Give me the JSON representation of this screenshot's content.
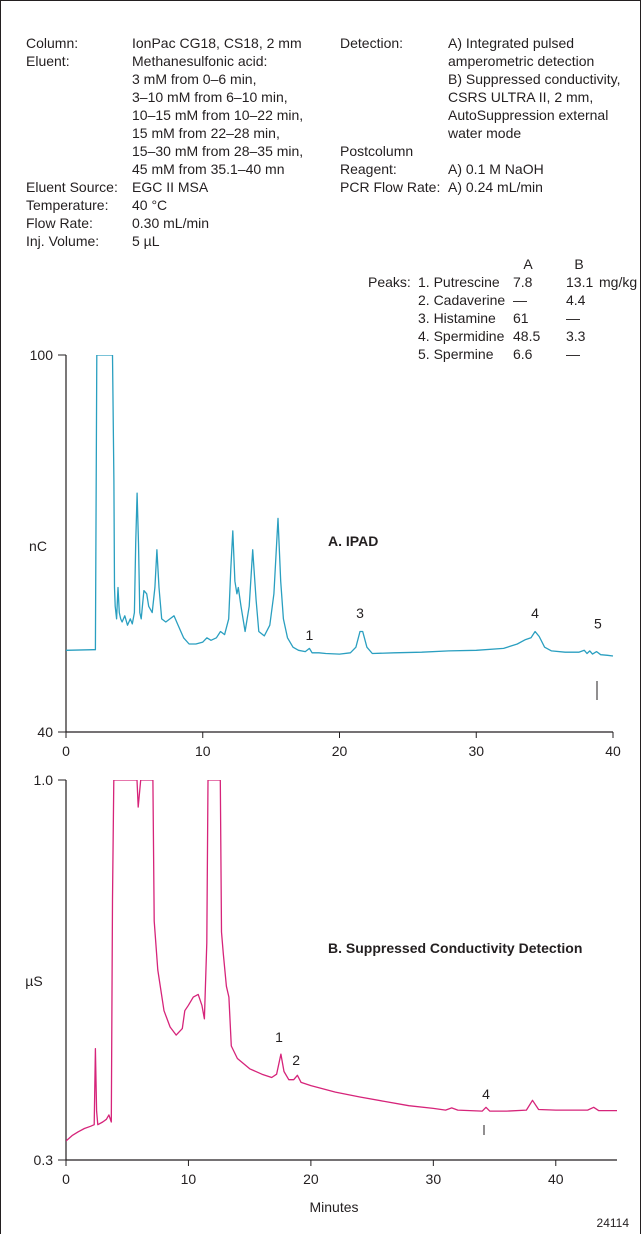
{
  "conditions": {
    "left": [
      {
        "label": "Column:",
        "lines": [
          "IonPac CG18, CS18, 2 mm"
        ]
      },
      {
        "label": "Eluent:",
        "lines": [
          "Methanesulfonic acid:",
          "3 mM from 0–6 min,",
          "3–10 mM from 6–10 min,",
          "10–15 mM from 10–22 min,",
          "15 mM from 22–28 min,",
          "15–30 mM from 28–35 min,",
          "45 mM from 35.1–40 mn"
        ]
      },
      {
        "label": "Eluent Source:",
        "lines": [
          "EGC II MSA"
        ]
      },
      {
        "label": "Temperature:",
        "lines": [
          "40 °C"
        ]
      },
      {
        "label": "Flow Rate:",
        "lines": [
          "0.30 mL/min"
        ]
      },
      {
        "label": "Inj. Volume:",
        "lines": [
          "5 µL"
        ]
      }
    ],
    "right": [
      {
        "label": "Detection:",
        "lines": [
          "A) Integrated pulsed",
          "    amperometric detection",
          "B) Suppressed conductivity,",
          "    CSRS ULTRA II, 2 mm,",
          "    AutoSuppression external",
          "    water mode"
        ]
      },
      {
        "label": "Postcolumn",
        "lines": []
      },
      {
        "label": "Reagent:",
        "lines": [
          "A) 0.1 M NaOH"
        ]
      },
      {
        "label": "PCR Flow Rate:",
        "lines": [
          "A) 0.24 mL/min"
        ]
      }
    ]
  },
  "peaks_table": {
    "label": "Peaks:",
    "col_a": "A",
    "col_b": "B",
    "unit": "mg/kg",
    "rows": [
      {
        "name": "1. Putrescine",
        "a": "7.8",
        "b": "13.1"
      },
      {
        "name": "2. Cadaverine",
        "a": "—",
        "b": "4.4"
      },
      {
        "name": "3. Histamine",
        "a": "61",
        "b": "—"
      },
      {
        "name": "4. Spermidine",
        "a": "48.5",
        "b": "3.3"
      },
      {
        "name": "5. Spermine",
        "a": "6.6",
        "b": "—"
      }
    ]
  },
  "x_label": "Minutes",
  "figure_number": "24114",
  "colors": {
    "ipad": "#2a9fc0",
    "conductivity": "#d6247a",
    "ink": "#231f20"
  },
  "chart_data": [
    {
      "type": "line",
      "title": "A. IPAD",
      "ylabel": "nC",
      "xlim": [
        0,
        40
      ],
      "ylim": [
        40,
        100
      ],
      "xticks": [
        0,
        10,
        20,
        30,
        40
      ],
      "yticks": [
        40,
        100
      ],
      "series": [
        {
          "color": "#2a9fc0",
          "points": [
            [
              0,
              53.0
            ],
            [
              2.0,
              53.1
            ],
            [
              2.15,
              53.1
            ],
            [
              2.25,
              100
            ],
            [
              2.6,
              100
            ],
            [
              2.75,
              100
            ],
            [
              2.85,
              100
            ],
            [
              3.0,
              100
            ],
            [
              3.15,
              100
            ],
            [
              3.3,
              100
            ],
            [
              3.4,
              100
            ],
            [
              3.5,
              80
            ],
            [
              3.55,
              63
            ],
            [
              3.6,
              60
            ],
            [
              3.7,
              58
            ],
            [
              3.8,
              63
            ],
            [
              3.9,
              59
            ],
            [
              4.0,
              58
            ],
            [
              4.1,
              57.5
            ],
            [
              4.3,
              58.5
            ],
            [
              4.5,
              57
            ],
            [
              4.7,
              58
            ],
            [
              4.85,
              57.2
            ],
            [
              5.0,
              59
            ],
            [
              5.1,
              70
            ],
            [
              5.2,
              78
            ],
            [
              5.3,
              70
            ],
            [
              5.4,
              59
            ],
            [
              5.5,
              58
            ],
            [
              5.7,
              62.5
            ],
            [
              5.9,
              62
            ],
            [
              6.05,
              60
            ],
            [
              6.3,
              59
            ],
            [
              6.5,
              63
            ],
            [
              6.65,
              69
            ],
            [
              6.8,
              63
            ],
            [
              7.0,
              58
            ],
            [
              7.3,
              57.5
            ],
            [
              7.6,
              58
            ],
            [
              7.9,
              58.5
            ],
            [
              8.2,
              57
            ],
            [
              8.6,
              55
            ],
            [
              9.0,
              54
            ],
            [
              9.5,
              54
            ],
            [
              10.0,
              54.3
            ],
            [
              10.3,
              55
            ],
            [
              10.6,
              54.6
            ],
            [
              11.0,
              55
            ],
            [
              11.3,
              56
            ],
            [
              11.6,
              55.5
            ],
            [
              11.9,
              58
            ],
            [
              12.05,
              66
            ],
            [
              12.2,
              72
            ],
            [
              12.35,
              64
            ],
            [
              12.5,
              62
            ],
            [
              12.6,
              63
            ],
            [
              12.8,
              60
            ],
            [
              13.1,
              56
            ],
            [
              13.4,
              60
            ],
            [
              13.65,
              69
            ],
            [
              13.9,
              61
            ],
            [
              14.1,
              56
            ],
            [
              14.5,
              55.3
            ],
            [
              14.9,
              57
            ],
            [
              15.2,
              62
            ],
            [
              15.5,
              74
            ],
            [
              15.7,
              64
            ],
            [
              15.9,
              58
            ],
            [
              16.2,
              55
            ],
            [
              16.6,
              53.5
            ],
            [
              17.0,
              53.0
            ],
            [
              17.5,
              52.8
            ],
            [
              17.8,
              53.3
            ],
            [
              18.0,
              52.6
            ],
            [
              18.5,
              52.6
            ],
            [
              19.0,
              52.5
            ],
            [
              20.0,
              52.4
            ],
            [
              20.8,
              52.6
            ],
            [
              21.2,
              53.5
            ],
            [
              21.5,
              56.0
            ],
            [
              21.7,
              56.0
            ],
            [
              22.0,
              53.5
            ],
            [
              22.4,
              52.5
            ],
            [
              24.0,
              52.6
            ],
            [
              26.0,
              52.7
            ],
            [
              28.0,
              52.9
            ],
            [
              30.0,
              53.0
            ],
            [
              32.0,
              53.3
            ],
            [
              33.0,
              54.0
            ],
            [
              33.6,
              54.7
            ],
            [
              34.0,
              55.0
            ],
            [
              34.3,
              56.0
            ],
            [
              34.6,
              55.2
            ],
            [
              35.0,
              53.5
            ],
            [
              35.5,
              52.9
            ],
            [
              36.5,
              52.7
            ],
            [
              37.5,
              52.7
            ],
            [
              37.9,
              53.0
            ],
            [
              38.1,
              52.5
            ],
            [
              38.3,
              52.9
            ],
            [
              38.5,
              52.4
            ],
            [
              38.8,
              52.8
            ],
            [
              39.1,
              52.3
            ],
            [
              39.6,
              52.2
            ],
            [
              40.0,
              52.1
            ]
          ]
        }
      ],
      "peak_labels": [
        {
          "label": "1",
          "x": 17.8,
          "y": 54.0
        },
        {
          "label": "3",
          "x": 21.5,
          "y": 57.5
        },
        {
          "label": "4",
          "x": 34.3,
          "y": 57.5
        },
        {
          "label": "5",
          "x": 38.9,
          "y": 55.8
        }
      ]
    },
    {
      "type": "line",
      "title": "B. Suppressed Conductivity Detection",
      "ylabel": "µS",
      "xlim": [
        0,
        45
      ],
      "ylim": [
        0.3,
        1.0
      ],
      "xticks": [
        0,
        10,
        20,
        30,
        40
      ],
      "yticks": [
        0.3,
        1.0
      ],
      "series": [
        {
          "color": "#d6247a",
          "points": [
            [
              0,
              0.335
            ],
            [
              0.5,
              0.345
            ],
            [
              1.0,
              0.352
            ],
            [
              1.5,
              0.358
            ],
            [
              2.0,
              0.362
            ],
            [
              2.3,
              0.365
            ],
            [
              2.4,
              0.505
            ],
            [
              2.5,
              0.39
            ],
            [
              2.6,
              0.365
            ],
            [
              3.0,
              0.37
            ],
            [
              3.3,
              0.375
            ],
            [
              3.5,
              0.383
            ],
            [
              3.7,
              0.37
            ],
            [
              3.8,
              0.78
            ],
            [
              3.9,
              1.0
            ],
            [
              5.8,
              1.0
            ],
            [
              5.85,
              0.975
            ],
            [
              5.9,
              0.95
            ],
            [
              6.1,
              1.0
            ],
            [
              7.1,
              1.0
            ],
            [
              7.2,
              0.74
            ],
            [
              7.5,
              0.65
            ],
            [
              8.0,
              0.575
            ],
            [
              8.5,
              0.545
            ],
            [
              9.0,
              0.53
            ],
            [
              9.5,
              0.542
            ],
            [
              9.7,
              0.575
            ],
            [
              10.0,
              0.585
            ],
            [
              10.4,
              0.6
            ],
            [
              10.8,
              0.605
            ],
            [
              11.1,
              0.585
            ],
            [
              11.3,
              0.56
            ],
            [
              11.5,
              0.7
            ],
            [
              11.6,
              1.0
            ],
            [
              12.6,
              1.0
            ],
            [
              12.7,
              0.72
            ],
            [
              12.85,
              0.68
            ],
            [
              13.1,
              0.62
            ],
            [
              13.3,
              0.6
            ],
            [
              13.5,
              0.51
            ],
            [
              14.0,
              0.487
            ],
            [
              15.0,
              0.468
            ],
            [
              16.0,
              0.458
            ],
            [
              16.8,
              0.452
            ],
            [
              17.2,
              0.458
            ],
            [
              17.55,
              0.495
            ],
            [
              17.8,
              0.463
            ],
            [
              18.2,
              0.448
            ],
            [
              18.6,
              0.448
            ],
            [
              18.9,
              0.456
            ],
            [
              19.2,
              0.443
            ],
            [
              20.0,
              0.437
            ],
            [
              22.0,
              0.425
            ],
            [
              24.0,
              0.416
            ],
            [
              26.0,
              0.408
            ],
            [
              28.0,
              0.4
            ],
            [
              30.0,
              0.395
            ],
            [
              31.0,
              0.392
            ],
            [
              31.5,
              0.396
            ],
            [
              32.0,
              0.392
            ],
            [
              34.0,
              0.39
            ],
            [
              34.3,
              0.397
            ],
            [
              34.6,
              0.39
            ],
            [
              36.0,
              0.39
            ],
            [
              37.6,
              0.392
            ],
            [
              38.1,
              0.41
            ],
            [
              38.6,
              0.393
            ],
            [
              40.0,
              0.392
            ],
            [
              42.6,
              0.392
            ],
            [
              43.1,
              0.397
            ],
            [
              43.5,
              0.391
            ],
            [
              45.0,
              0.391
            ]
          ]
        }
      ],
      "peak_labels": [
        {
          "label": "1",
          "x": 17.4,
          "y": 0.51
        },
        {
          "label": "2",
          "x": 18.8,
          "y": 0.468
        },
        {
          "label": "4",
          "x": 34.3,
          "y": 0.405
        }
      ]
    }
  ]
}
